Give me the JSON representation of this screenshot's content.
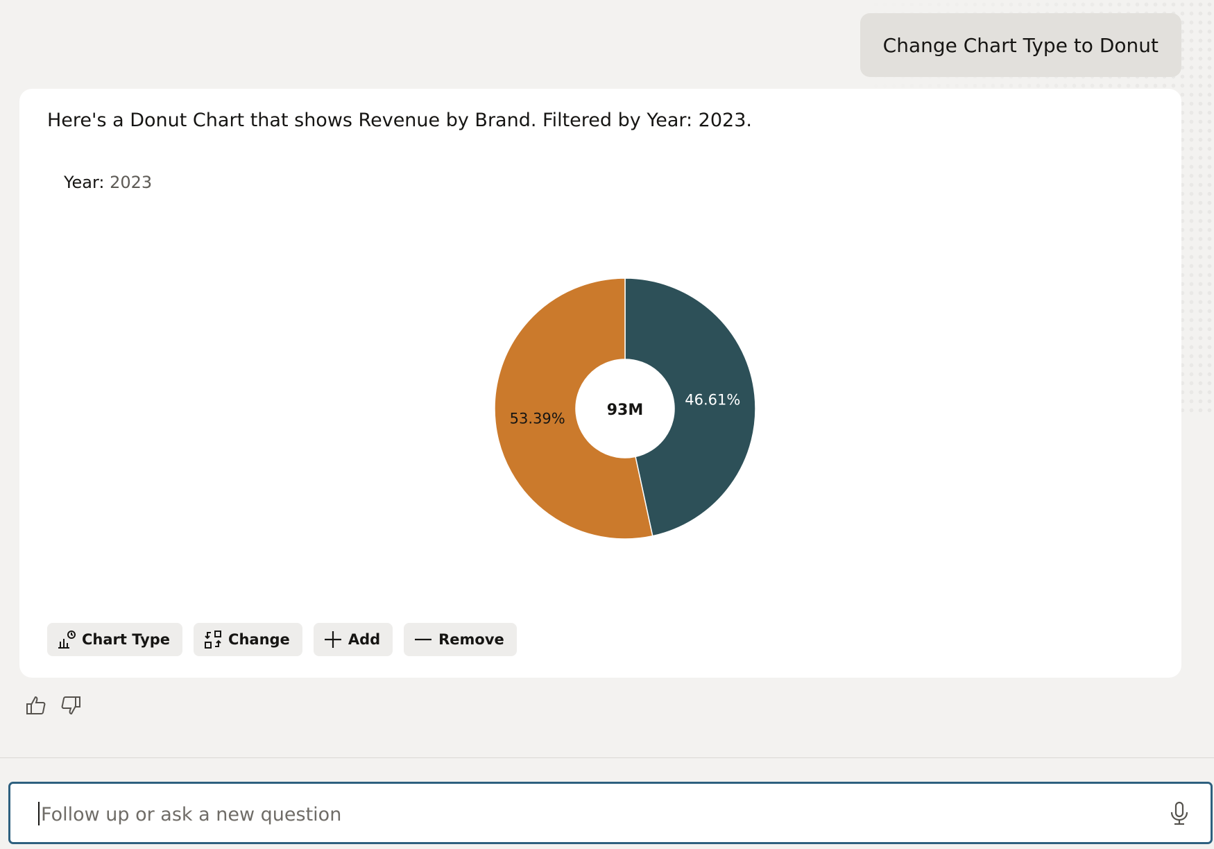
{
  "conversation": {
    "user_message": "Change Chart Type to Donut",
    "response_text": "Here's a Donut Chart that shows Revenue by Brand. Filtered by Year: 2023."
  },
  "filter": {
    "label": "Year:",
    "value": "2023"
  },
  "chart_data": {
    "type": "pie",
    "donut": true,
    "center_label": "93M",
    "slices": [
      {
        "label": "46.61%",
        "value": 46.61,
        "color": "#2d5058",
        "label_color": "#ffffff"
      },
      {
        "label": "53.39%",
        "value": 53.39,
        "color": "#cb7a2c",
        "label_color": "#161513"
      }
    ]
  },
  "actions": [
    {
      "id": "chart-type",
      "label": "Chart Type",
      "icon": "chart-type-icon"
    },
    {
      "id": "change",
      "label": "Change",
      "icon": "swap-icon"
    },
    {
      "id": "add",
      "label": "Add",
      "icon": "plus-icon"
    },
    {
      "id": "remove",
      "label": "Remove",
      "icon": "minus-icon"
    }
  ],
  "feedback": {
    "like_icon": "thumbs-up-icon",
    "dislike_icon": "thumbs-down-icon"
  },
  "input": {
    "placeholder": "Follow up or ask a new question",
    "value": "",
    "mic_icon": "microphone-icon"
  },
  "colors": {
    "accent_border": "#2e607f",
    "background": "#f3f2f0"
  }
}
